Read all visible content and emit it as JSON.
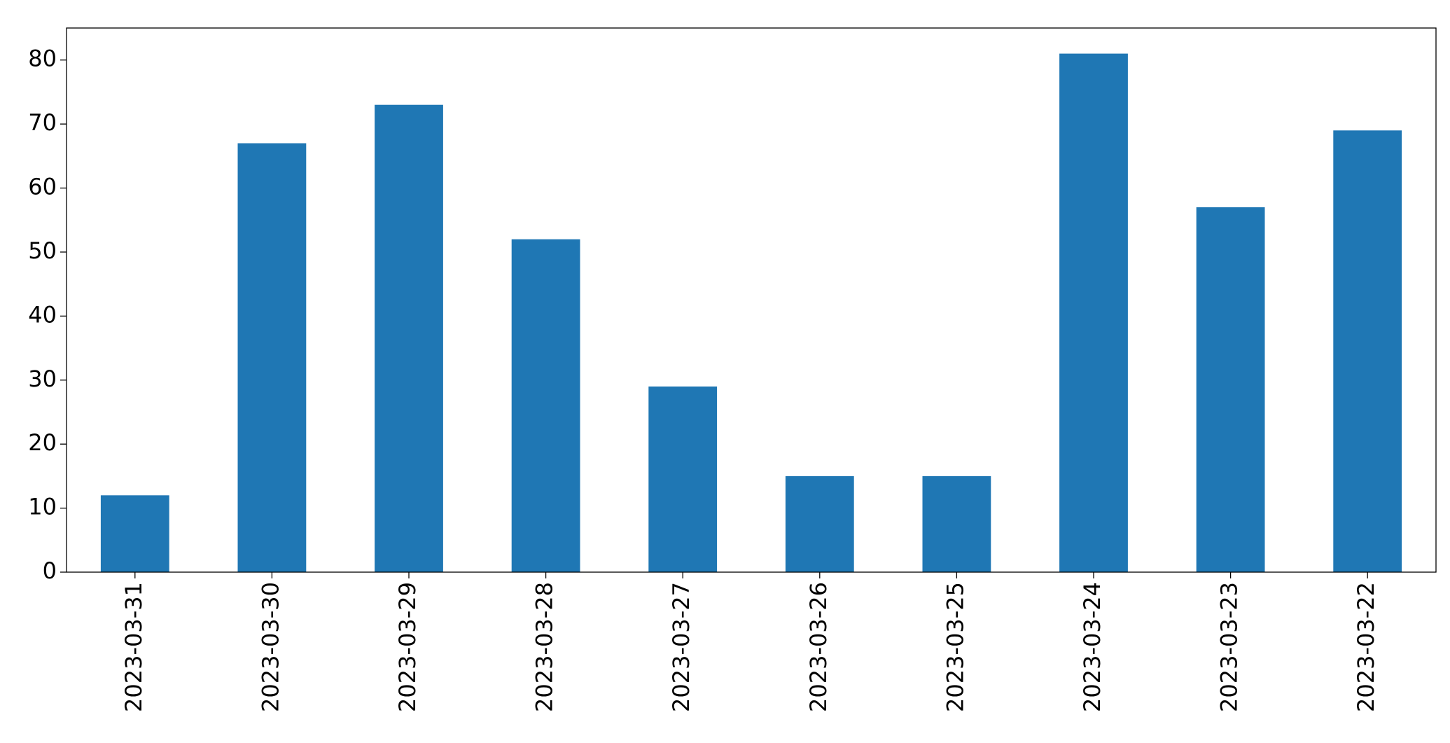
{
  "chart_data": {
    "type": "bar",
    "categories": [
      "2023-03-31",
      "2023-03-30",
      "2023-03-29",
      "2023-03-28",
      "2023-03-27",
      "2023-03-26",
      "2023-03-25",
      "2023-03-24",
      "2023-03-23",
      "2023-03-22"
    ],
    "values": [
      12,
      67,
      73,
      52,
      29,
      15,
      15,
      81,
      57,
      69
    ],
    "color": "#1f77b4",
    "ylim": [
      0,
      85
    ],
    "yticks": [
      0,
      10,
      20,
      30,
      40,
      50,
      60,
      70,
      80
    ],
    "grid": false
  }
}
